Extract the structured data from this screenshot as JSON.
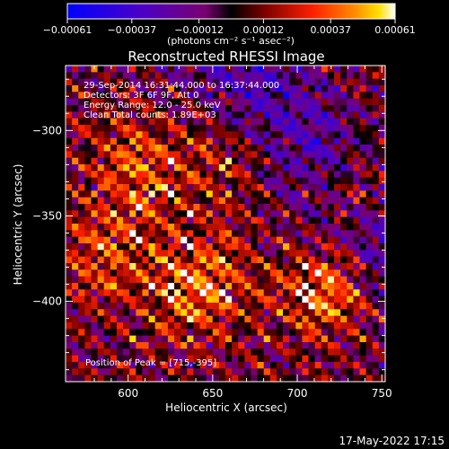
{
  "chart_data": {
    "type": "heatmap",
    "title": "Reconstructed RHESSI Image",
    "xlabel": "Heliocentric X (arcsec)",
    "ylabel": "Heliocentric Y (arcsec)",
    "xlim": [
      563,
      752
    ],
    "ylim": [
      -447,
      -262
    ],
    "x_ticks": [
      600,
      650,
      700,
      750
    ],
    "y_ticks": [
      -300,
      -350,
      -400
    ],
    "colorbar": {
      "range": [
        -0.00061,
        0.00061
      ],
      "ticks": [
        "-0.00061",
        "-0.00037",
        "-0.00012",
        "0.00012",
        "0.00037",
        "0.00061"
      ],
      "label": "(photons cm⁻² s⁻¹ asec⁻²)"
    },
    "annotations": [
      "29-Sep-2014 16:31:44.000 to 16:37:44.000",
      "Detectors: 3F 6F 9F, Att 0",
      "Energy Range: 12.0 - 25.0 keV",
      "Clean    Total counts: 1.89E+03"
    ],
    "peak_label": "Position of Peak = [715,-395]",
    "peak": [
      715,
      -395
    ],
    "grid_nx": 50,
    "grid_ny": 48,
    "footer": "17-May-2022 17:15",
    "grid": false
  }
}
